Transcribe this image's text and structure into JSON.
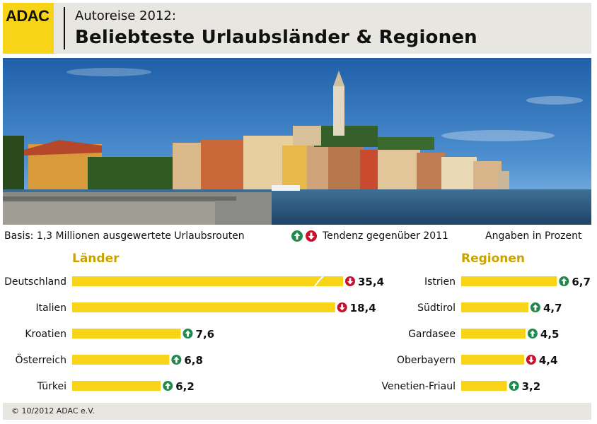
{
  "header": {
    "logo": "ADAC",
    "subtitle": "Autoreise 2012:",
    "title": "Beliebteste Urlaubsländer & Regionen"
  },
  "info": {
    "basis": "Basis: 1,3 Millionen ausgewertete Urlaubsrouten",
    "tendenz": "Tendenz gegenüber 2011",
    "angaben": "Angaben in Prozent"
  },
  "colors": {
    "bar": "#f7d417",
    "up": "#1f8a4c",
    "down": "#c8102e",
    "section_title": "#c9a100"
  },
  "chart_data": [
    {
      "type": "bar",
      "orientation": "horizontal",
      "title": "Länder",
      "categories": [
        "Deutschland",
        "Italien",
        "Kroatien",
        "Österreich",
        "Türkei"
      ],
      "values": [
        35.4,
        18.4,
        7.6,
        6.8,
        6.2
      ],
      "value_labels": [
        "35,4",
        "18,4",
        "7,6",
        "6,8",
        "6,2"
      ],
      "trend": [
        "down",
        "down",
        "up",
        "up",
        "up"
      ],
      "axis_break": [
        "yes",
        "no",
        "no",
        "no",
        "no"
      ]
    },
    {
      "type": "bar",
      "orientation": "horizontal",
      "title": "Regionen",
      "categories": [
        "Istrien",
        "Südtirol",
        "Gardasee",
        "Oberbayern",
        "Venetien-Friaul"
      ],
      "values": [
        6.7,
        4.7,
        4.5,
        4.4,
        3.2
      ],
      "value_labels": [
        "6,7",
        "4,7",
        "4,5",
        "4,4",
        "3,2"
      ],
      "trend": [
        "up",
        "up",
        "up",
        "down",
        "up"
      ]
    }
  ],
  "footer": "© 10/2012 ADAC e.V."
}
